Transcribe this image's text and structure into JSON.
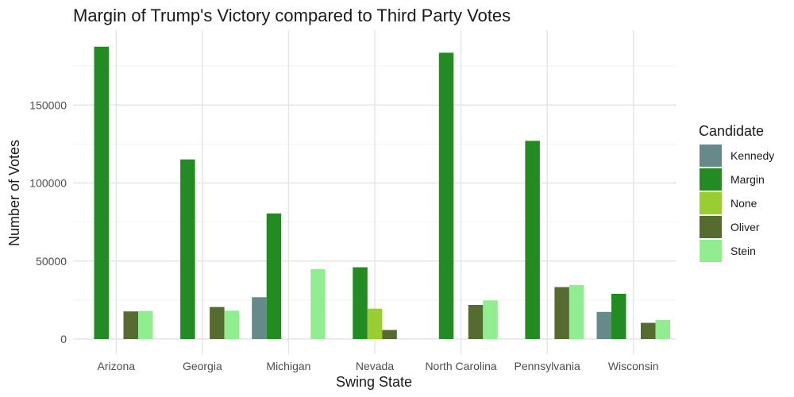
{
  "chart_data": {
    "type": "bar",
    "title": "Margin of Trump's Victory compared to Third Party Votes",
    "xlabel": "Swing State",
    "ylabel": "Number of Votes",
    "ylim": [
      0,
      190000
    ],
    "yticks": [
      0,
      50000,
      100000,
      150000
    ],
    "grid": true,
    "legend_position": "right",
    "legend_title": "Candidate",
    "categories": [
      "Arizona",
      "Georgia",
      "Michigan",
      "Nevada",
      "North Carolina",
      "Pennsylvania",
      "Wisconsin"
    ],
    "series": [
      {
        "name": "Kennedy",
        "color": "#66898A",
        "values": [
          null,
          null,
          26800,
          null,
          null,
          null,
          17400
        ]
      },
      {
        "name": "Margin",
        "color": "#228B22",
        "values": [
          187400,
          115100,
          80500,
          46000,
          183500,
          127000,
          29000
        ]
      },
      {
        "name": "None",
        "color": "#9ACD32",
        "values": [
          null,
          null,
          null,
          19500,
          null,
          null,
          null
        ]
      },
      {
        "name": "Oliver",
        "color": "#556B2F",
        "values": [
          17700,
          20500,
          null,
          5800,
          21900,
          33300,
          10400
        ]
      },
      {
        "name": "Stein",
        "color": "#90EE90",
        "values": [
          18000,
          18200,
          44800,
          null,
          24800,
          34600,
          12200
        ]
      }
    ]
  }
}
